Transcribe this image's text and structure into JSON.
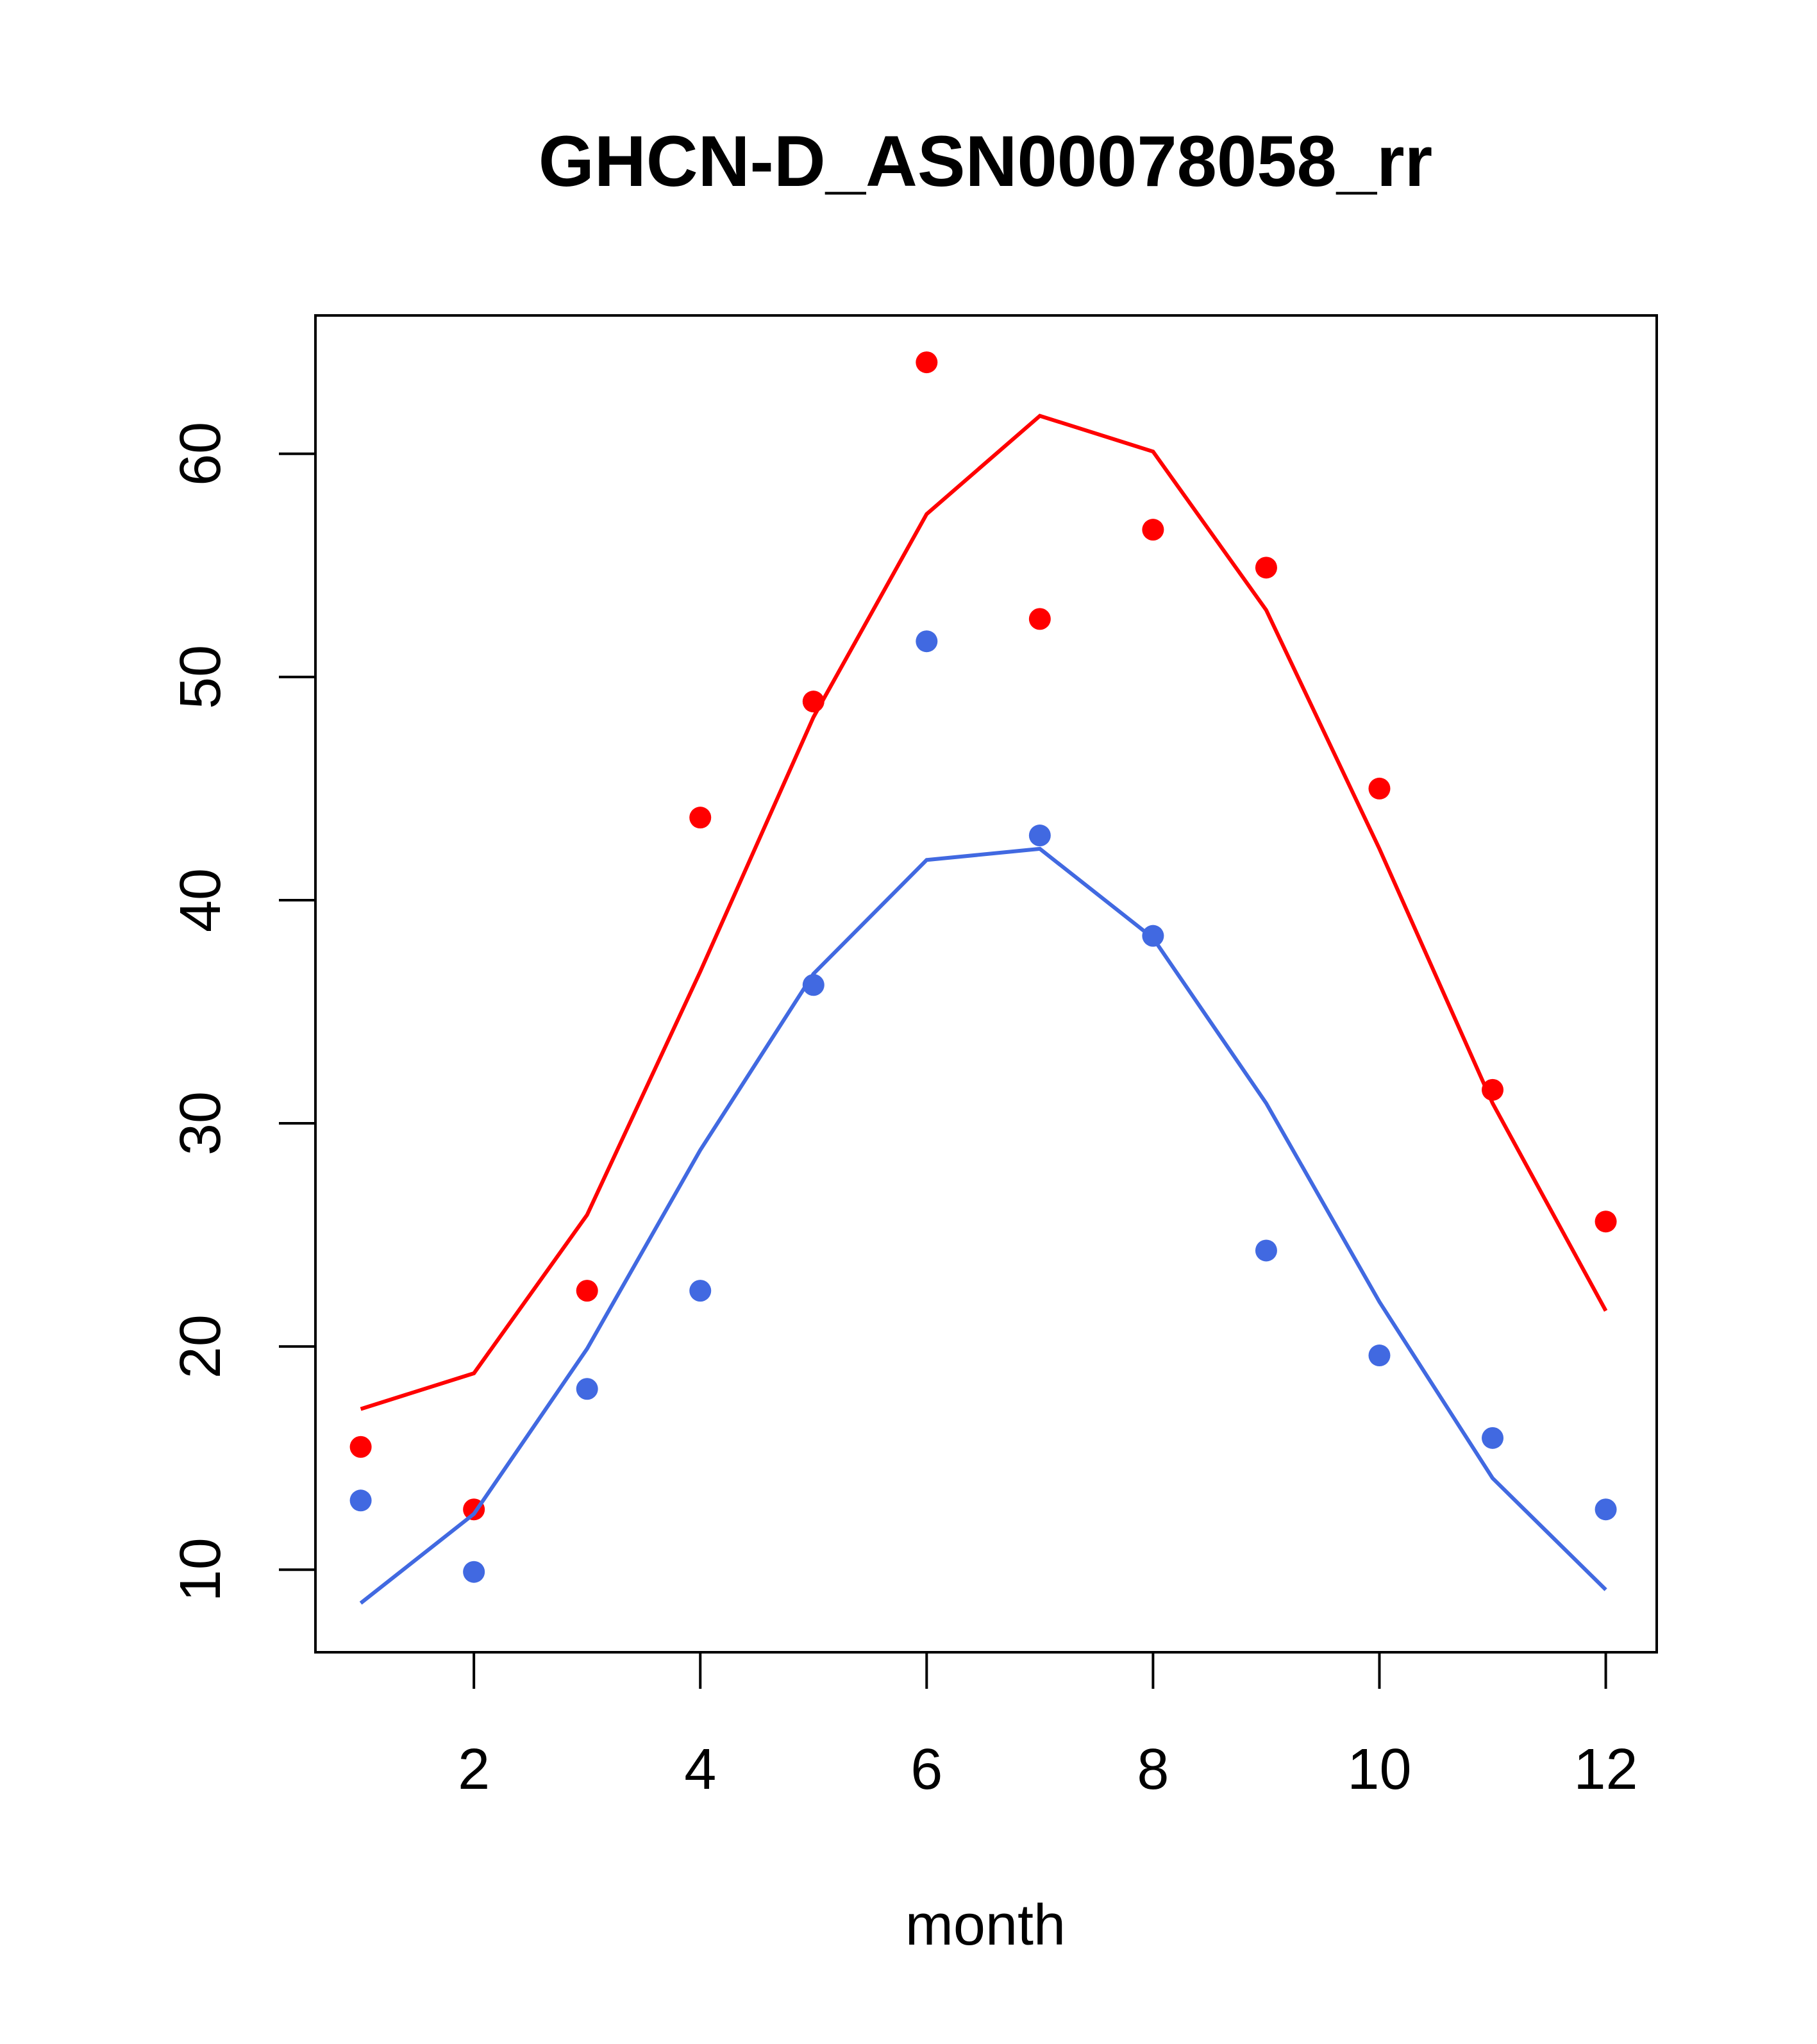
{
  "chart_data": {
    "type": "line",
    "title": "GHCN-D_ASN00078058_rr",
    "xlabel": "month",
    "ylabel": "",
    "xlim": [
      0.6,
      12.45
    ],
    "ylim": [
      6.3,
      66.2
    ],
    "x_ticks": [
      2,
      4,
      6,
      8,
      10,
      12
    ],
    "y_ticks": [
      10,
      20,
      30,
      40,
      50,
      60
    ],
    "grid": false,
    "legend": "none",
    "x": [
      1,
      2,
      3,
      4,
      5,
      6,
      7,
      8,
      9,
      10,
      11,
      12
    ],
    "series": [
      {
        "name": "red",
        "color": "#ff0000",
        "line": [
          17.2,
          18.8,
          25.9,
          36.8,
          48.2,
          57.3,
          61.7,
          60.1,
          53.0,
          42.3,
          30.9,
          21.6
        ],
        "points": [
          15.5,
          12.7,
          22.5,
          43.7,
          48.9,
          64.1,
          52.6,
          56.6,
          54.9,
          45.0,
          31.5,
          25.6
        ]
      },
      {
        "name": "blue",
        "color": "#4169e1",
        "line": [
          8.5,
          12.5,
          19.9,
          28.8,
          36.7,
          41.8,
          42.3,
          38.3,
          30.9,
          22.0,
          14.1,
          9.1
        ],
        "points": [
          13.1,
          9.9,
          18.1,
          22.5,
          36.2,
          51.6,
          42.9,
          38.4,
          24.3,
          19.6,
          15.9,
          12.7
        ]
      }
    ]
  }
}
